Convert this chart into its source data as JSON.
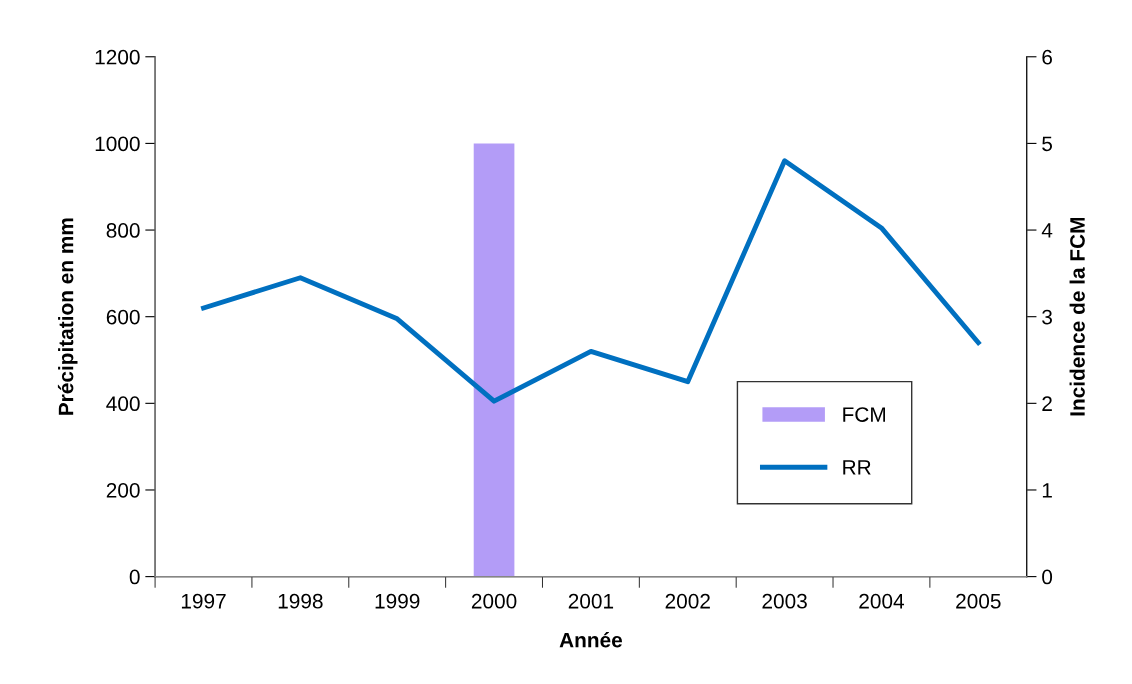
{
  "chart_data": {
    "type": "line",
    "xlabel": "Année",
    "ylabel": "Précipitation en mm",
    "y2label": "Incidence de la FCM",
    "categories": [
      "1997",
      "1998",
      "1999",
      "2000",
      "2001",
      "2002",
      "2003",
      "2004",
      "2005"
    ],
    "series": [
      {
        "name": "FCM",
        "type": "bar",
        "axis": "y2",
        "color": "#b39cf7",
        "values": [
          null,
          null,
          null,
          5,
          null,
          null,
          null,
          null,
          null
        ]
      },
      {
        "name": "RR",
        "color": "#0070c0",
        "values": [
          620,
          690,
          595,
          405,
          520,
          450,
          960,
          805,
          540
        ]
      }
    ],
    "ylim": [
      0,
      1200
    ],
    "yticks": [
      0,
      200,
      400,
      600,
      800,
      1000,
      1200
    ],
    "y2lim": [
      0,
      6
    ],
    "y2ticks": [
      0,
      1,
      2,
      3,
      4,
      5,
      6
    ],
    "grid": false,
    "legend": "bottom right",
    "marker": "none",
    "line_style": "solid"
  }
}
